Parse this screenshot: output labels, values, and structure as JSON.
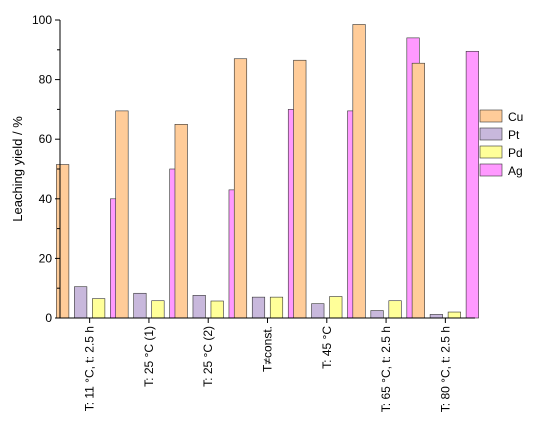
{
  "chart_data": {
    "type": "bar",
    "title": "",
    "xlabel": "",
    "ylabel": "Leaching yield / %",
    "ylim": [
      0,
      100
    ],
    "yticks": [
      0,
      20,
      40,
      60,
      80,
      100
    ],
    "grid": false,
    "legend_position": "right",
    "categories": [
      "T: 11 °C, t: 2.5 h",
      "T: 25 °C (1)",
      "T: 25 °C (2)",
      "T≠const.",
      "T: 45 °C",
      "T: 65 °C, t: 2.5 h",
      "T: 80 °C, t: 2.5 h"
    ],
    "series": [
      {
        "name": "Cu",
        "color": "#FFCC99",
        "values": [
          51.5,
          69.5,
          65,
          87,
          86.5,
          98.5,
          85.5
        ]
      },
      {
        "name": "Pt",
        "color": "#C8B8DC",
        "values": [
          10.5,
          8.3,
          7.6,
          7,
          4.8,
          2.5,
          1.2
        ]
      },
      {
        "name": "Pd",
        "color": "#FFFF99",
        "values": [
          6.5,
          5.8,
          5.7,
          7,
          7.2,
          5.8,
          2
        ]
      },
      {
        "name": "Ag",
        "color": "#FF99FF",
        "values": [
          40,
          50,
          43,
          70,
          69.5,
          94,
          89.5
        ]
      }
    ]
  }
}
